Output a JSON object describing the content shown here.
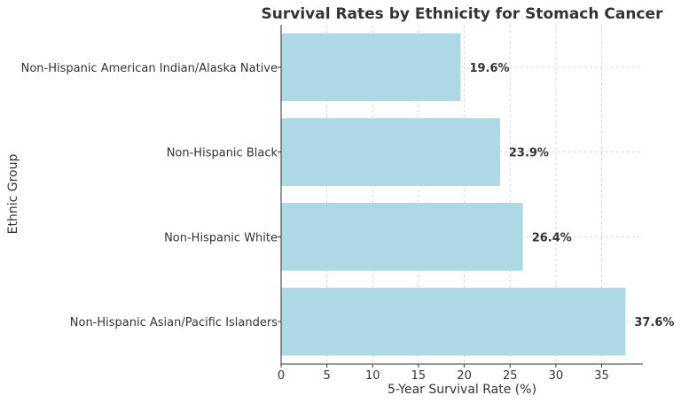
{
  "chart_data": {
    "type": "bar",
    "orientation": "horizontal",
    "title": "Survival Rates by Ethnicity for Stomach Cancer",
    "xlabel": "5-Year Survival Rate (%)",
    "ylabel": "Ethnic Group",
    "categories": [
      "Non-Hispanic Asian/Pacific Islanders",
      "Non-Hispanic White",
      "Non-Hispanic Black",
      "Non-Hispanic American Indian/Alaska Native"
    ],
    "values": [
      37.6,
      26.4,
      23.9,
      19.6
    ],
    "data_labels": [
      "37.6%",
      "26.4%",
      "23.9%",
      "19.6%"
    ],
    "xlim": [
      0,
      39.5
    ],
    "xticks": [
      "0",
      "5",
      "10",
      "15",
      "20",
      "25",
      "30",
      "35"
    ],
    "grid": true,
    "bar_color": "#add8e6"
  }
}
